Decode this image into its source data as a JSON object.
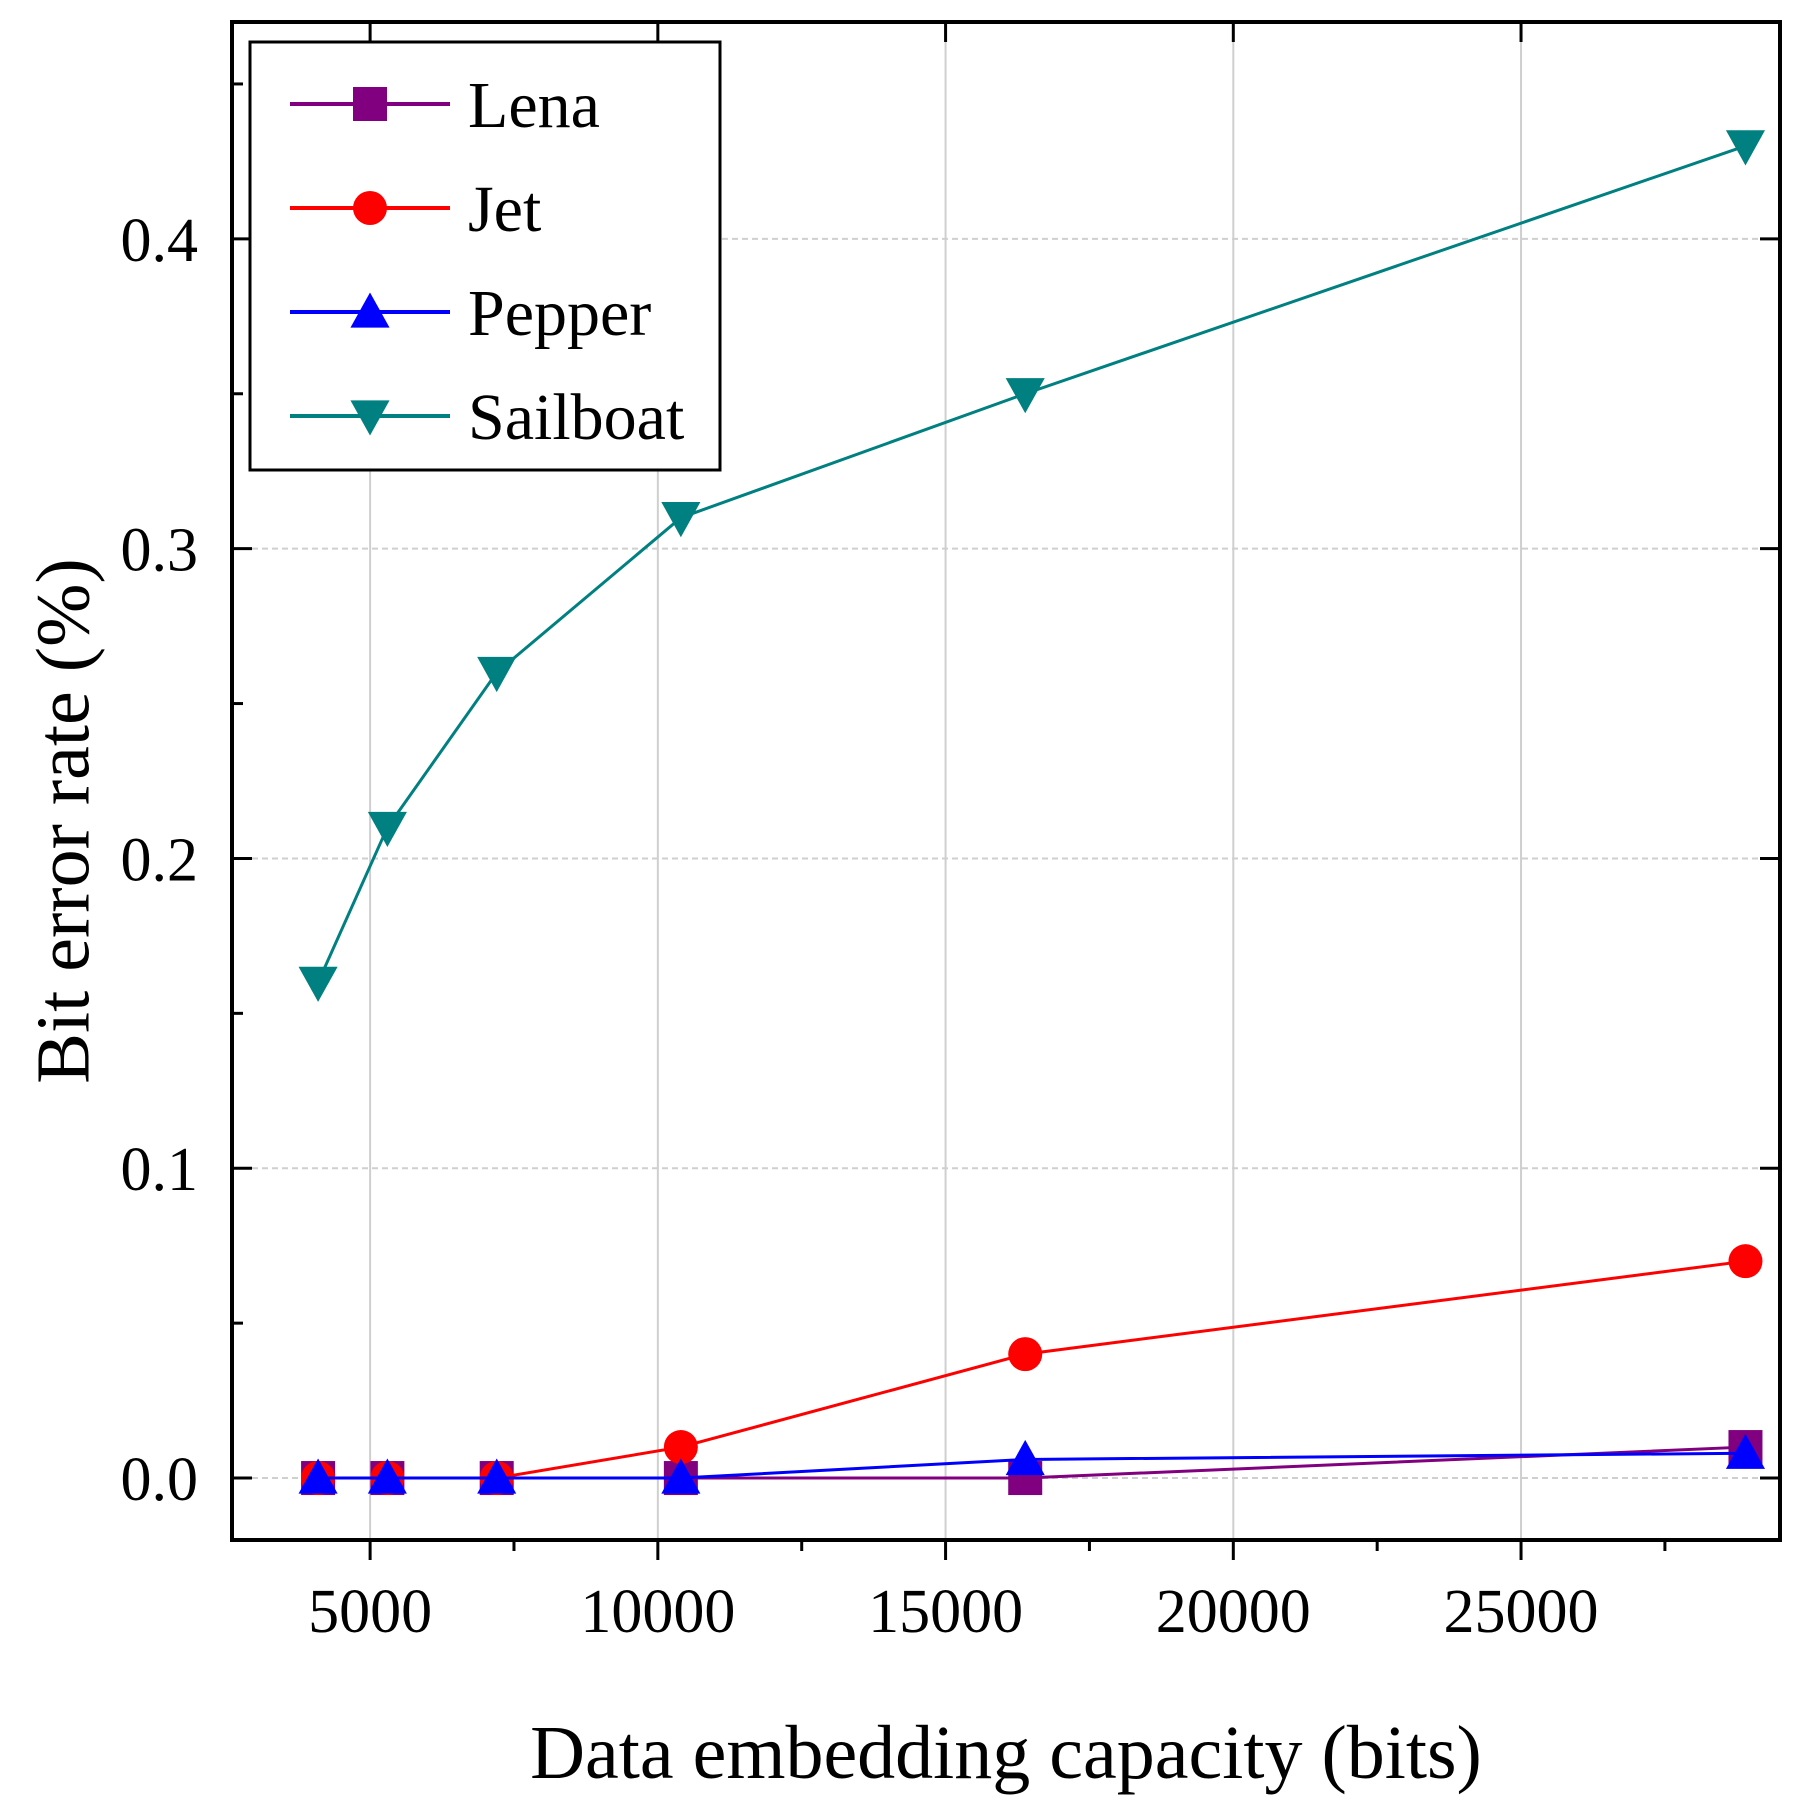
{
  "chart_data": {
    "type": "line",
    "title": "",
    "xlabel": "Data embedding capacity (bits)",
    "ylabel": "Bit error rate (%)",
    "xlim": [
      2600,
      29500
    ],
    "ylim": [
      -0.02,
      0.47
    ],
    "xticks": [
      5000,
      10000,
      15000,
      20000,
      25000
    ],
    "xtick_labels": [
      "5000",
      "10000",
      "15000",
      "20000",
      "25000"
    ],
    "yticks": [
      0.0,
      0.1,
      0.2,
      0.3,
      0.4
    ],
    "ytick_labels": [
      "0.0",
      "0.1",
      "0.2",
      "0.3",
      "0.4"
    ],
    "grid": true,
    "legend_position": "top-left",
    "x": [
      4096,
      5300,
      7200,
      10400,
      16384,
      28900
    ],
    "series": [
      {
        "name": "Lena",
        "color": "#800080",
        "marker": "square",
        "values": [
          0.0,
          0.0,
          0.0,
          0.0,
          0.0,
          0.01
        ]
      },
      {
        "name": "Jet",
        "color": "#ff0000",
        "marker": "circle",
        "values": [
          0.0,
          0.0,
          0.0,
          0.01,
          0.04,
          0.07
        ]
      },
      {
        "name": "Pepper",
        "color": "#0000ff",
        "marker": "triangle-up",
        "values": [
          0.0,
          0.0,
          0.0,
          0.0,
          0.006,
          0.008
        ]
      },
      {
        "name": "Sailboat",
        "color": "#008080",
        "marker": "triangle-down",
        "values": [
          0.16,
          0.21,
          0.26,
          0.31,
          0.35,
          0.43
        ]
      }
    ]
  }
}
